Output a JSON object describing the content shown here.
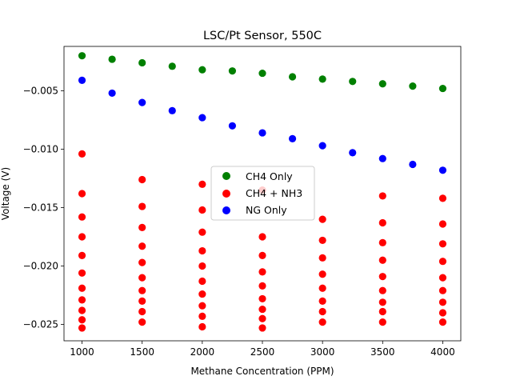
{
  "chart_data": {
    "type": "scatter",
    "title": "LSC/Pt Sensor, 550C",
    "xlabel": "Methane Concentration (PPM)",
    "ylabel": "Voltage (V)",
    "xlim": [
      850,
      4150
    ],
    "ylim": [
      -0.0264,
      -0.0012
    ],
    "xticks": [
      1000,
      1500,
      2000,
      2500,
      3000,
      3500,
      4000
    ],
    "xtick_labels": [
      "1000",
      "1500",
      "2000",
      "2500",
      "3000",
      "3500",
      "4000"
    ],
    "yticks": [
      -0.025,
      -0.02,
      -0.015,
      -0.01,
      -0.005
    ],
    "ytick_labels": [
      "−0.025",
      "−0.020",
      "−0.015",
      "−0.010",
      "−0.005"
    ],
    "grid": false,
    "legend_position": "center",
    "series": [
      {
        "name": "CH4 Only",
        "color": "#008000",
        "points": [
          [
            1000,
            -0.002
          ],
          [
            1250,
            -0.0023
          ],
          [
            1500,
            -0.0026
          ],
          [
            1750,
            -0.0029
          ],
          [
            2000,
            -0.0032
          ],
          [
            2250,
            -0.0033
          ],
          [
            2500,
            -0.0035
          ],
          [
            2750,
            -0.0038
          ],
          [
            3000,
            -0.004
          ],
          [
            3250,
            -0.0042
          ],
          [
            3500,
            -0.0044
          ],
          [
            3750,
            -0.0046
          ],
          [
            4000,
            -0.0048
          ]
        ]
      },
      {
        "name": "CH4 + NH3",
        "color": "#ff0000",
        "points": [
          [
            1000,
            -0.0104
          ],
          [
            1000,
            -0.0138
          ],
          [
            1000,
            -0.0158
          ],
          [
            1000,
            -0.0175
          ],
          [
            1000,
            -0.0191
          ],
          [
            1000,
            -0.0206
          ],
          [
            1000,
            -0.0219
          ],
          [
            1000,
            -0.0229
          ],
          [
            1000,
            -0.0238
          ],
          [
            1000,
            -0.0246
          ],
          [
            1000,
            -0.0253
          ],
          [
            1500,
            -0.0126
          ],
          [
            1500,
            -0.0149
          ],
          [
            1500,
            -0.0167
          ],
          [
            1500,
            -0.0183
          ],
          [
            1500,
            -0.0197
          ],
          [
            1500,
            -0.021
          ],
          [
            1500,
            -0.0221
          ],
          [
            1500,
            -0.023
          ],
          [
            1500,
            -0.0239
          ],
          [
            1500,
            -0.0248
          ],
          [
            2000,
            -0.013
          ],
          [
            2000,
            -0.0152
          ],
          [
            2000,
            -0.0171
          ],
          [
            2000,
            -0.0187
          ],
          [
            2000,
            -0.02
          ],
          [
            2000,
            -0.0213
          ],
          [
            2000,
            -0.0224
          ],
          [
            2000,
            -0.0234
          ],
          [
            2000,
            -0.0243
          ],
          [
            2000,
            -0.0252
          ],
          [
            2500,
            -0.0135
          ],
          [
            2500,
            -0.0175
          ],
          [
            2500,
            -0.0191
          ],
          [
            2500,
            -0.0205
          ],
          [
            2500,
            -0.0217
          ],
          [
            2500,
            -0.0228
          ],
          [
            2500,
            -0.0237
          ],
          [
            2500,
            -0.0245
          ],
          [
            2500,
            -0.0253
          ],
          [
            3000,
            -0.016
          ],
          [
            3000,
            -0.0178
          ],
          [
            3000,
            -0.0193
          ],
          [
            3000,
            -0.0207
          ],
          [
            3000,
            -0.0219
          ],
          [
            3000,
            -0.023
          ],
          [
            3000,
            -0.0239
          ],
          [
            3000,
            -0.0248
          ],
          [
            3500,
            -0.014
          ],
          [
            3500,
            -0.0163
          ],
          [
            3500,
            -0.018
          ],
          [
            3500,
            -0.0195
          ],
          [
            3500,
            -0.0209
          ],
          [
            3500,
            -0.0221
          ],
          [
            3500,
            -0.0231
          ],
          [
            3500,
            -0.0239
          ],
          [
            3500,
            -0.0248
          ],
          [
            4000,
            -0.0142
          ],
          [
            4000,
            -0.0164
          ],
          [
            4000,
            -0.0181
          ],
          [
            4000,
            -0.0196
          ],
          [
            4000,
            -0.021
          ],
          [
            4000,
            -0.0221
          ],
          [
            4000,
            -0.0231
          ],
          [
            4000,
            -0.024
          ],
          [
            4000,
            -0.0248
          ]
        ]
      },
      {
        "name": "NG Only",
        "color": "#0000ff",
        "points": [
          [
            1000,
            -0.0041
          ],
          [
            1250,
            -0.0052
          ],
          [
            1500,
            -0.006
          ],
          [
            1750,
            -0.0067
          ],
          [
            2000,
            -0.0073
          ],
          [
            2250,
            -0.008
          ],
          [
            2500,
            -0.0086
          ],
          [
            2750,
            -0.0091
          ],
          [
            3000,
            -0.0097
          ],
          [
            3250,
            -0.0103
          ],
          [
            3500,
            -0.0108
          ],
          [
            3750,
            -0.0113
          ],
          [
            4000,
            -0.0118
          ]
        ]
      }
    ]
  }
}
